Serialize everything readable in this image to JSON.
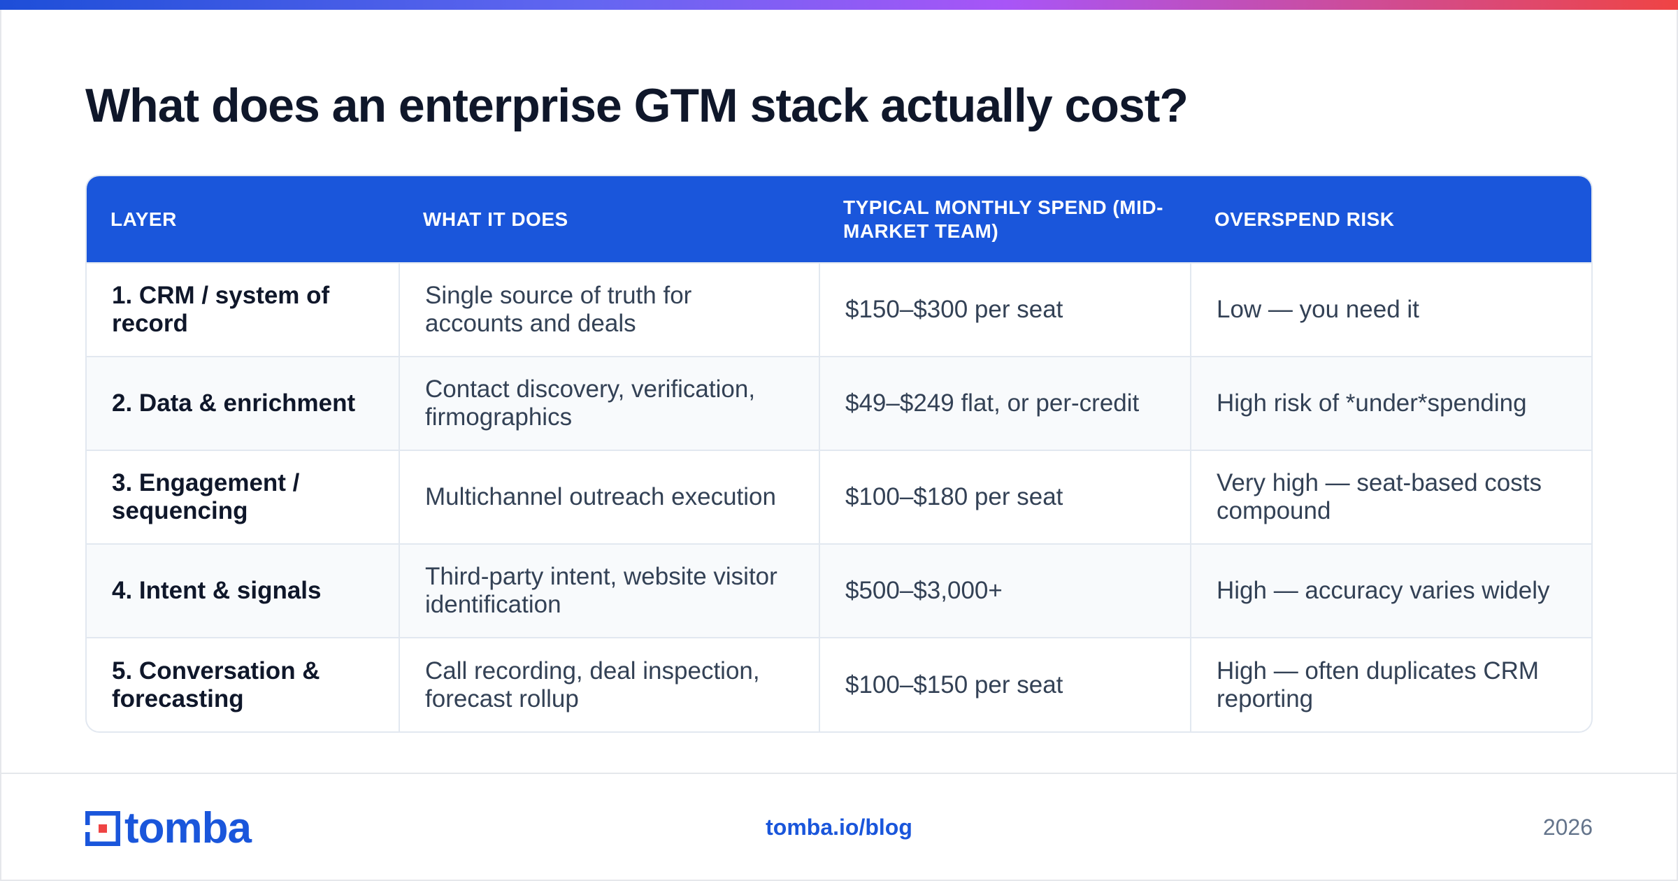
{
  "title": "What does an enterprise GTM stack actually cost?",
  "colors": {
    "accent": "#1a56db",
    "gradient": [
      "#1d4ed8",
      "#a855f7",
      "#ef4444"
    ]
  },
  "table": {
    "headers": [
      "LAYER",
      "WHAT IT DOES",
      "TYPICAL MONTHLY SPEND (MID-MARKET TEAM)",
      "OVERSPEND RISK"
    ],
    "rows": [
      [
        "1. CRM / system of record",
        "Single source of truth for accounts and deals",
        "$150–$300 per seat",
        "Low — you need it"
      ],
      [
        "2. Data & enrichment",
        "Contact discovery, verification, firmographics",
        "$49–$249 flat, or per-credit",
        "High risk of *under*spending"
      ],
      [
        "3. Engagement / sequencing",
        "Multichannel outreach execution",
        "$100–$180 per seat",
        "Very high — seat-based costs compound"
      ],
      [
        "4. Intent & signals",
        "Third-party intent, website visitor identification",
        "$500–$3,000+",
        "High — accuracy varies widely"
      ],
      [
        "5. Conversation & forecasting",
        "Call recording, deal inspection, forecast rollup",
        "$100–$150 per seat",
        "High — often duplicates CRM reporting"
      ]
    ]
  },
  "footer": {
    "logo_text": "tomba",
    "logo_icon": "tomba-logo-icon",
    "link": "tomba.io/blog",
    "year": "2026"
  }
}
